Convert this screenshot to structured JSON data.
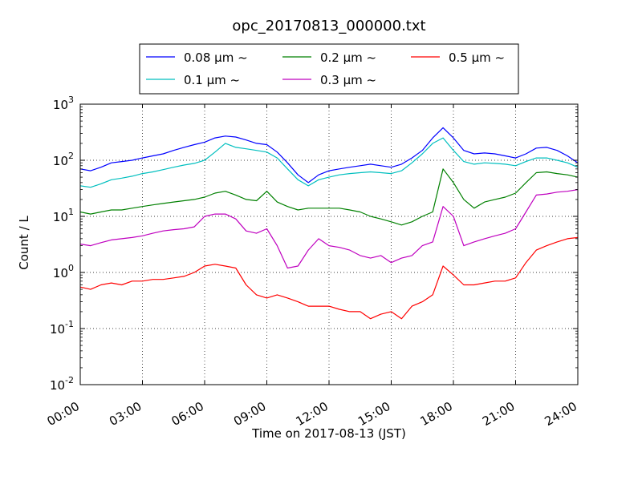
{
  "chart_data": {
    "type": "line",
    "title": "opc_20170813_000000.txt",
    "xlabel": "Time on 2017-08-13 (JST)",
    "ylabel": "Count / L",
    "y_scale": "log",
    "ylim": [
      0.01,
      1000
    ],
    "xlim": [
      0,
      24
    ],
    "x_ticks": [
      "00:00",
      "03:00",
      "06:00",
      "09:00",
      "12:00",
      "15:00",
      "18:00",
      "21:00",
      "24:00"
    ],
    "y_ticks": [
      {
        "base": "10",
        "exp": "-2",
        "value": 0.01
      },
      {
        "base": "10",
        "exp": "-1",
        "value": 0.1
      },
      {
        "base": "10",
        "exp": "0",
        "value": 1
      },
      {
        "base": "10",
        "exp": "1",
        "value": 10
      },
      {
        "base": "10",
        "exp": "2",
        "value": 100
      },
      {
        "base": "10",
        "exp": "3",
        "value": 1000
      }
    ],
    "grid": true,
    "legend": {
      "placement": "top"
    },
    "series": [
      {
        "name": "0.08 μm ~",
        "color": "#0000ff",
        "x": [
          0,
          0.5,
          1,
          1.5,
          2,
          2.5,
          3,
          3.5,
          4,
          4.5,
          5,
          5.5,
          6,
          6.5,
          7,
          7.5,
          8,
          8.5,
          9,
          9.5,
          10,
          10.5,
          11,
          11.5,
          12,
          12.5,
          13,
          13.5,
          14,
          14.5,
          15,
          15.5,
          16,
          16.5,
          17,
          17.5,
          18,
          18.5,
          19,
          19.5,
          20,
          20.5,
          21,
          21.5,
          22,
          22.5,
          23,
          23.5,
          24
        ],
        "y": [
          70,
          65,
          75,
          90,
          95,
          100,
          110,
          120,
          130,
          150,
          170,
          190,
          210,
          250,
          270,
          260,
          230,
          200,
          190,
          140,
          90,
          55,
          40,
          55,
          65,
          70,
          75,
          80,
          85,
          80,
          75,
          85,
          110,
          150,
          250,
          380,
          250,
          150,
          130,
          135,
          130,
          120,
          110,
          130,
          165,
          170,
          150,
          120,
          90
        ]
      },
      {
        "name": "0.1 μm ~",
        "color": "#00bfbf",
        "x": [
          0,
          0.5,
          1,
          1.5,
          2,
          2.5,
          3,
          3.5,
          4,
          4.5,
          5,
          5.5,
          6,
          6.5,
          7,
          7.5,
          8,
          8.5,
          9,
          9.5,
          10,
          10.5,
          11,
          11.5,
          12,
          12.5,
          13,
          13.5,
          14,
          14.5,
          15,
          15.5,
          16,
          16.5,
          17,
          17.5,
          18,
          18.5,
          19,
          19.5,
          20,
          20.5,
          21,
          21.5,
          22,
          22.5,
          23,
          23.5,
          24
        ],
        "y": [
          35,
          33,
          38,
          45,
          48,
          52,
          58,
          62,
          68,
          75,
          82,
          88,
          100,
          140,
          200,
          170,
          160,
          150,
          140,
          110,
          70,
          45,
          35,
          45,
          50,
          55,
          58,
          60,
          62,
          60,
          58,
          65,
          90,
          130,
          200,
          250,
          150,
          95,
          85,
          90,
          88,
          85,
          80,
          95,
          110,
          110,
          100,
          90,
          75
        ]
      },
      {
        "name": "0.2 μm ~",
        "color": "#008000",
        "x": [
          0,
          0.5,
          1,
          1.5,
          2,
          2.5,
          3,
          3.5,
          4,
          4.5,
          5,
          5.5,
          6,
          6.5,
          7,
          7.5,
          8,
          8.5,
          9,
          9.5,
          10,
          10.5,
          11,
          11.5,
          12,
          12.5,
          13,
          13.5,
          14,
          14.5,
          15,
          15.5,
          16,
          16.5,
          17,
          17.5,
          18,
          18.5,
          19,
          19.5,
          20,
          20.5,
          21,
          21.5,
          22,
          22.5,
          23,
          23.5,
          24
        ],
        "y": [
          12,
          11,
          12,
          13,
          13,
          14,
          15,
          16,
          17,
          18,
          19,
          20,
          22,
          26,
          28,
          24,
          20,
          19,
          28,
          18,
          15,
          13,
          14,
          14,
          14,
          14,
          13,
          12,
          10,
          9,
          8,
          7,
          8,
          10,
          12,
          70,
          40,
          20,
          14,
          18,
          20,
          22,
          26,
          40,
          60,
          62,
          58,
          55,
          50
        ]
      },
      {
        "name": "0.3 μm ~",
        "color": "#bf00bf",
        "x": [
          0,
          0.5,
          1,
          1.5,
          2,
          2.5,
          3,
          3.5,
          4,
          4.5,
          5,
          5.5,
          6,
          6.5,
          7,
          7.5,
          8,
          8.5,
          9,
          9.5,
          10,
          10.5,
          11,
          11.5,
          12,
          12.5,
          13,
          13.5,
          14,
          14.5,
          15,
          15.5,
          16,
          16.5,
          17,
          17.5,
          18,
          18.5,
          19,
          19.5,
          20,
          20.5,
          21,
          21.5,
          22,
          22.5,
          23,
          23.5,
          24
        ],
        "y": [
          3.2,
          3.0,
          3.4,
          3.8,
          4.0,
          4.2,
          4.5,
          5.0,
          5.5,
          5.8,
          6.0,
          6.5,
          10,
          11,
          11,
          9,
          5.5,
          5.0,
          6.0,
          3.0,
          1.2,
          1.3,
          2.5,
          4.0,
          3.0,
          2.8,
          2.5,
          2.0,
          1.8,
          2.0,
          1.5,
          1.8,
          2.0,
          3.0,
          3.5,
          15,
          10,
          3.0,
          3.5,
          4.0,
          4.5,
          5.0,
          6.0,
          12,
          24,
          25,
          27,
          28,
          30
        ]
      },
      {
        "name": "0.5 μm ~",
        "color": "#ff0000",
        "x": [
          0,
          0.5,
          1,
          1.5,
          2,
          2.5,
          3,
          3.5,
          4,
          4.5,
          5,
          5.5,
          6,
          6.5,
          7,
          7.5,
          8,
          8.5,
          9,
          9.5,
          10,
          10.5,
          11,
          11.5,
          12,
          12.5,
          13,
          13.5,
          14,
          14.5,
          15,
          15.5,
          16,
          16.5,
          17,
          17.5,
          18,
          18.5,
          19,
          19.5,
          20,
          20.5,
          21,
          21.5,
          22,
          22.5,
          23,
          23.5,
          24
        ],
        "y": [
          0.55,
          0.5,
          0.6,
          0.65,
          0.6,
          0.7,
          0.7,
          0.75,
          0.75,
          0.8,
          0.85,
          1.0,
          1.3,
          1.4,
          1.3,
          1.2,
          0.6,
          0.4,
          0.35,
          0.4,
          0.35,
          0.3,
          0.25,
          0.25,
          0.25,
          0.22,
          0.2,
          0.2,
          0.15,
          0.18,
          0.2,
          0.15,
          0.25,
          0.3,
          0.4,
          1.3,
          0.9,
          0.6,
          0.6,
          0.65,
          0.7,
          0.7,
          0.8,
          1.5,
          2.5,
          3.0,
          3.5,
          4.0,
          4.2
        ]
      }
    ]
  }
}
